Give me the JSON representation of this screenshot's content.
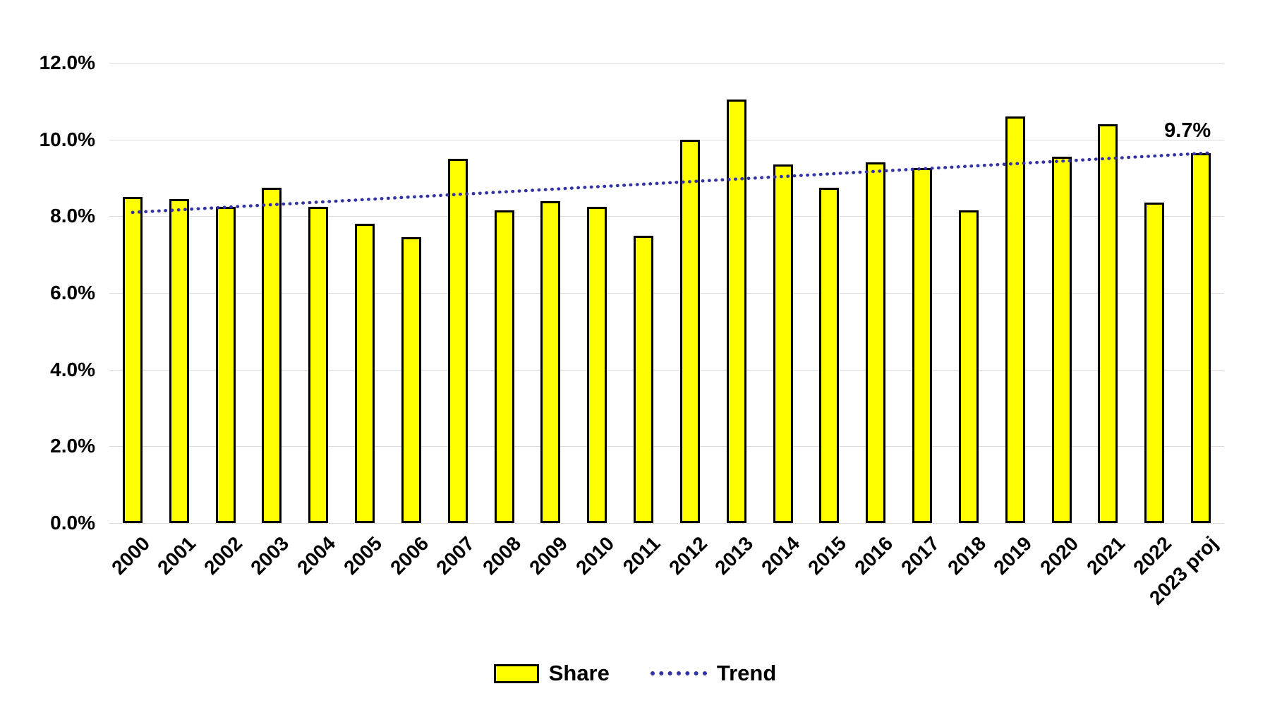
{
  "chart_data": {
    "type": "bar",
    "title": "",
    "unit": "percent",
    "categories": [
      "2000",
      "2001",
      "2002",
      "2003",
      "2004",
      "2005",
      "2006",
      "2007",
      "2008",
      "2009",
      "2010",
      "2011",
      "2012",
      "2013",
      "2014",
      "2015",
      "2016",
      "2017",
      "2018",
      "2019",
      "2020",
      "2021",
      "2022",
      "2023 proj"
    ],
    "series": [
      {
        "name": "Share",
        "type": "bar",
        "values": [
          8.5,
          8.45,
          8.25,
          8.75,
          8.25,
          7.8,
          7.45,
          9.5,
          8.15,
          8.4,
          8.25,
          7.5,
          10.0,
          11.05,
          9.35,
          8.75,
          9.4,
          9.25,
          8.15,
          10.6,
          9.55,
          10.4,
          8.35,
          9.65
        ]
      },
      {
        "name": "Trend",
        "type": "dotted-line",
        "trend_start": 8.1,
        "trend_end": 9.65
      }
    ],
    "ylim": [
      0,
      12
    ],
    "ytick_step": 2,
    "ytick_labels": [
      "0.0%",
      "2.0%",
      "4.0%",
      "6.0%",
      "8.0%",
      "10.0%",
      "12.0%"
    ],
    "grid": "horizontal",
    "legend_position": "bottom",
    "annotation": {
      "text": "9.7%",
      "category": "2023 proj"
    },
    "colors": {
      "bar_fill": "#FFFF00",
      "bar_border": "#000000",
      "trend": "#3333A6",
      "gridline": "#D9D9D9",
      "text": "#000000",
      "background": "#FFFFFF"
    }
  }
}
